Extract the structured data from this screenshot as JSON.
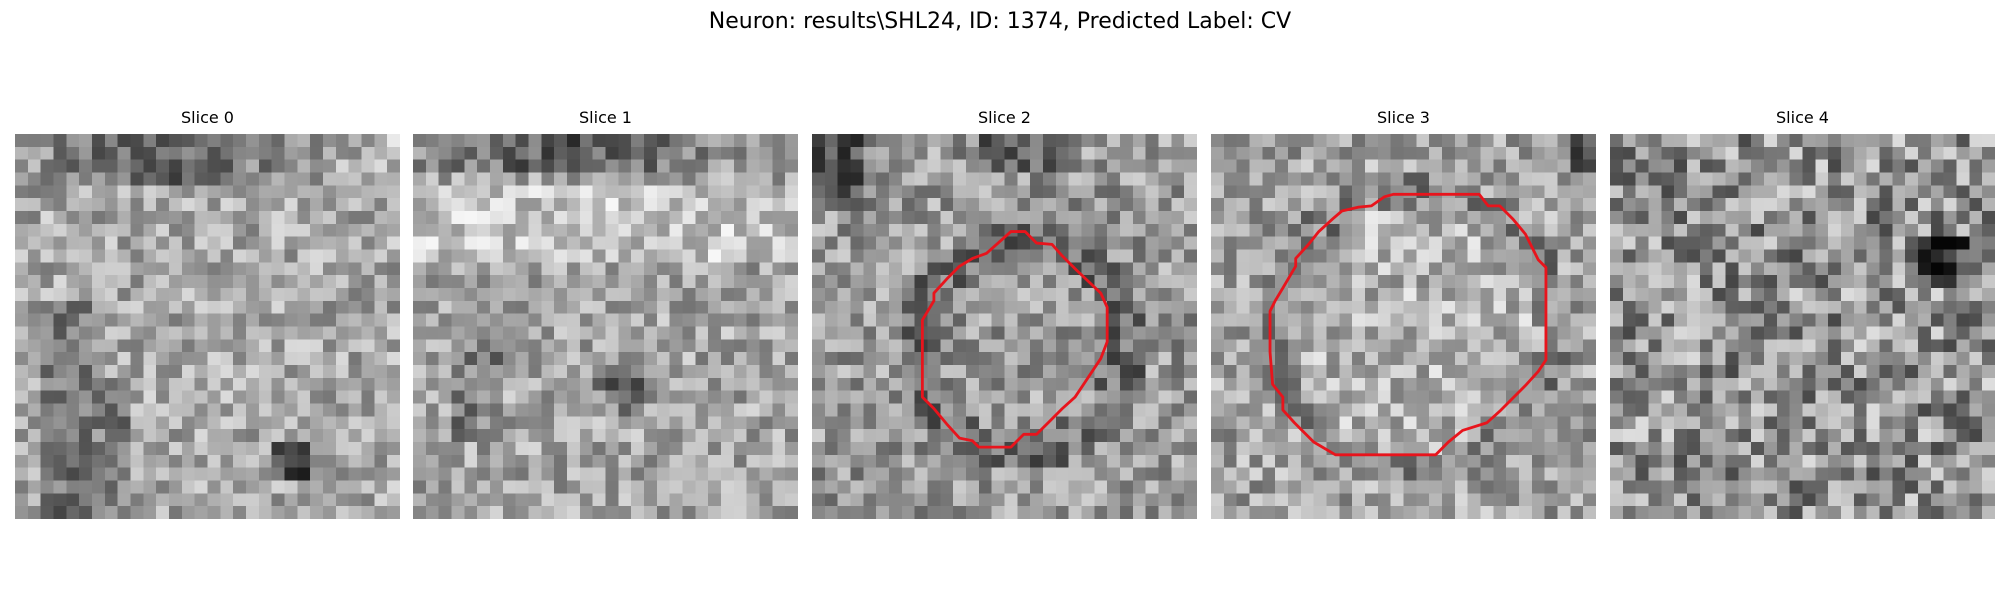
{
  "figure": {
    "title": "Neuron: results\\SHL24, ID: 1374, Predicted Label: CV",
    "contour_color": "#e8141c",
    "colormap": "grayscale",
    "grid_size": 30,
    "slices": [
      {
        "label": "Slice 0",
        "seed": 11,
        "texture": "dark band at top, dark vertical streak lower left, light mottled",
        "has_contour": false
      },
      {
        "label": "Slice 1",
        "seed": 23,
        "texture": "dark band at top, bright band upper middle, mottled gray",
        "has_contour": false
      },
      {
        "label": "Slice 2",
        "seed": 37,
        "texture": "mottled gray with circular membrane",
        "has_contour": true,
        "contour": [
          [
            15.5,
            7.6
          ],
          [
            16.6,
            7.6
          ],
          [
            17.5,
            8.5
          ],
          [
            18.7,
            8.6
          ],
          [
            19.5,
            9.5
          ],
          [
            20.6,
            10.6
          ],
          [
            22.5,
            12.4
          ],
          [
            23.0,
            13.5
          ],
          [
            23.0,
            16.2
          ],
          [
            22.5,
            17.5
          ],
          [
            21.5,
            19.0
          ],
          [
            20.5,
            20.5
          ],
          [
            19.5,
            21.4
          ],
          [
            18.5,
            22.4
          ],
          [
            17.5,
            23.4
          ],
          [
            16.5,
            23.4
          ],
          [
            15.5,
            24.4
          ],
          [
            13.0,
            24.4
          ],
          [
            12.5,
            23.9
          ],
          [
            11.5,
            23.7
          ],
          [
            10.5,
            22.6
          ],
          [
            9.5,
            21.4
          ],
          [
            8.6,
            20.5
          ],
          [
            8.6,
            17.8
          ],
          [
            8.6,
            14.5
          ],
          [
            9.5,
            13.0
          ],
          [
            9.5,
            12.4
          ],
          [
            10.5,
            11.3
          ],
          [
            11.5,
            10.3
          ],
          [
            12.5,
            9.7
          ],
          [
            13.6,
            9.3
          ],
          [
            14.5,
            8.5
          ]
        ]
      },
      {
        "label": "Slice 3",
        "seed": 53,
        "texture": "light gray with large circular outline",
        "has_contour": true,
        "contour": [
          [
            14.2,
            4.7
          ],
          [
            20.9,
            4.7
          ],
          [
            21.6,
            5.6
          ],
          [
            22.5,
            5.6
          ],
          [
            23.5,
            6.6
          ],
          [
            24.5,
            7.8
          ],
          [
            25.5,
            9.8
          ],
          [
            26.1,
            10.4
          ],
          [
            26.1,
            17.6
          ],
          [
            25.5,
            18.5
          ],
          [
            24.5,
            19.6
          ],
          [
            23.5,
            20.6
          ],
          [
            22.5,
            21.6
          ],
          [
            21.5,
            22.5
          ],
          [
            19.6,
            23.1
          ],
          [
            18.5,
            24.0
          ],
          [
            17.5,
            25.0
          ],
          [
            9.7,
            25.0
          ],
          [
            8.0,
            24.0
          ],
          [
            6.5,
            22.5
          ],
          [
            5.6,
            21.5
          ],
          [
            5.6,
            20.5
          ],
          [
            4.8,
            19.5
          ],
          [
            4.6,
            17.0
          ],
          [
            4.6,
            13.8
          ],
          [
            5.0,
            13.0
          ],
          [
            5.6,
            12.0
          ],
          [
            6.6,
            10.3
          ],
          [
            6.6,
            9.7
          ],
          [
            7.6,
            8.6
          ],
          [
            8.4,
            7.6
          ],
          [
            9.5,
            6.6
          ],
          [
            10.2,
            6.0
          ],
          [
            11.5,
            5.7
          ],
          [
            12.5,
            5.6
          ],
          [
            13.5,
            4.9
          ]
        ]
      },
      {
        "label": "Slice 4",
        "seed": 71,
        "texture": "noisy gray with dark blob on right",
        "has_contour": false
      }
    ]
  }
}
